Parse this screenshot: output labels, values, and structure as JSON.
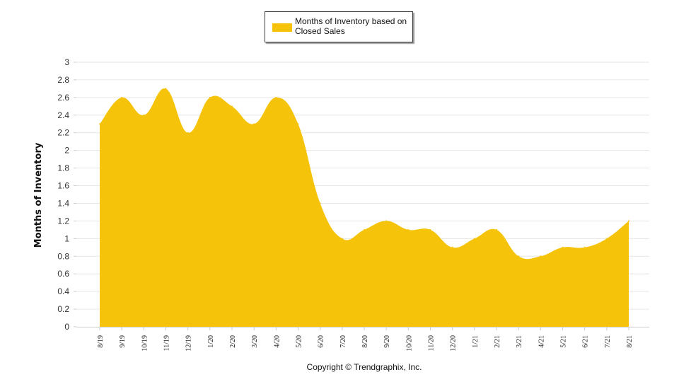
{
  "colors": {
    "fill": "#F5C40A",
    "grid": "#E6E6E6",
    "axis": "#CCCCCC"
  },
  "legend": {
    "label": "Months of Inventory based on Closed Sales"
  },
  "footer": {
    "copyright": "Copyright © Trendgraphix, Inc."
  },
  "chart_data": {
    "type": "area",
    "title": "",
    "xlabel": "",
    "ylabel": "Months of Inventory",
    "ylim": [
      0,
      3
    ],
    "yticks": [
      0,
      0.2,
      0.4,
      0.6,
      0.8,
      1,
      1.2,
      1.4,
      1.6,
      1.8,
      2,
      2.2,
      2.4,
      2.6,
      2.8,
      3
    ],
    "ytick_labels": [
      "0",
      "0.2",
      "0.4",
      "0.6",
      "0.8",
      "1",
      "1.2",
      "1.4",
      "1.6",
      "1.8",
      "2",
      "2.2",
      "2.4",
      "2.6",
      "2.8",
      "3"
    ],
    "grid": true,
    "legend_position": "top-center",
    "categories": [
      "8/19",
      "9/19",
      "10/19",
      "11/19",
      "12/19",
      "1/20",
      "2/20",
      "3/20",
      "4/20",
      "5/20",
      "6/20",
      "7/20",
      "8/20",
      "9/20",
      "10/20",
      "11/20",
      "12/20",
      "1/21",
      "2/21",
      "3/21",
      "4/21",
      "5/21",
      "6/21",
      "7/21",
      "8/21"
    ],
    "series": [
      {
        "name": "Months of Inventory based on Closed Sales",
        "values": [
          2.3,
          2.6,
          2.4,
          2.7,
          2.2,
          2.6,
          2.5,
          2.3,
          2.6,
          2.3,
          1.4,
          1.0,
          1.1,
          1.2,
          1.1,
          1.1,
          0.9,
          1.0,
          1.1,
          0.8,
          0.8,
          0.9,
          0.9,
          1.0,
          1.2
        ]
      }
    ]
  }
}
